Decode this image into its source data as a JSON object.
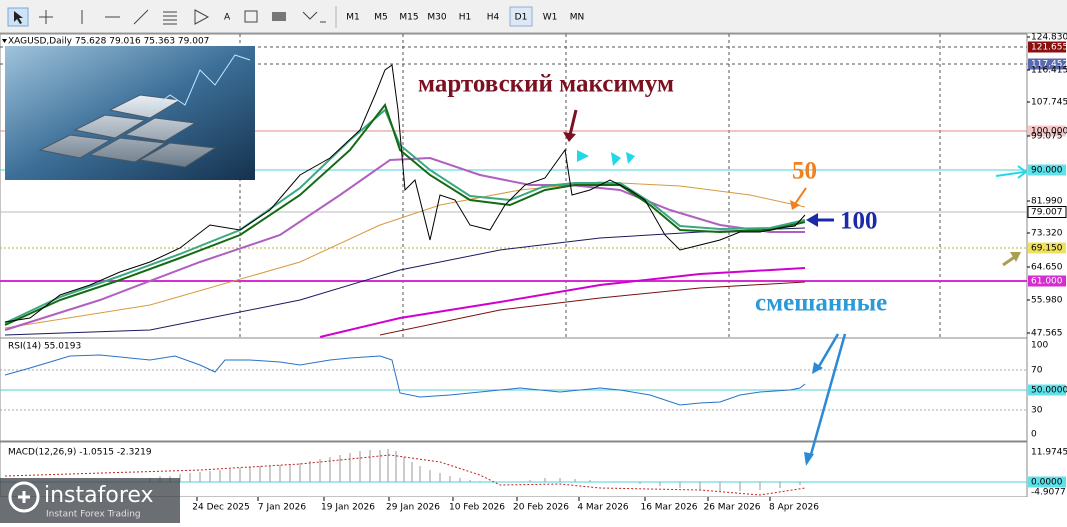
{
  "toolbar": {
    "timeframes": [
      "M1",
      "M5",
      "M15",
      "M30",
      "H1",
      "H4",
      "D1",
      "W1",
      "MN"
    ]
  },
  "chart": {
    "header": "XAGUSD,Daily  75.628 79.016 75.363 79.007",
    "price_axis": [
      "124.830",
      "121.655",
      "117.452",
      "116.415",
      "107.745",
      "100.000",
      "99.075",
      "90.000",
      "81.990",
      "79.007",
      "73.320",
      "69.150",
      "64.650",
      "61.000",
      "55.980",
      "47.565"
    ],
    "rsi_label": "RSI(14) 55.0193",
    "rsi_axis": [
      "100",
      "70",
      "50.0000",
      "30",
      "0"
    ],
    "macd_label": "MACD(12,26,9) -1.0515 -2.3219",
    "macd_axis": [
      "11.9745",
      "0.0000",
      "-4.9077"
    ],
    "dates": [
      "24 Dec 2025",
      "7 Jan 2026",
      "19 Jan 2026",
      "29 Jan 2026",
      "10 Feb 2026",
      "20 Feb 2026",
      "4 Mar 2026",
      "16 Mar 2026",
      "26 Mar 2026",
      "8 Apr 2026"
    ]
  },
  "annotations": [
    "мартовский максимум",
    "50",
    "100",
    "смешанные"
  ],
  "logo": {
    "name": "instaforex",
    "tagline": "Instant Forex Trading"
  }
}
